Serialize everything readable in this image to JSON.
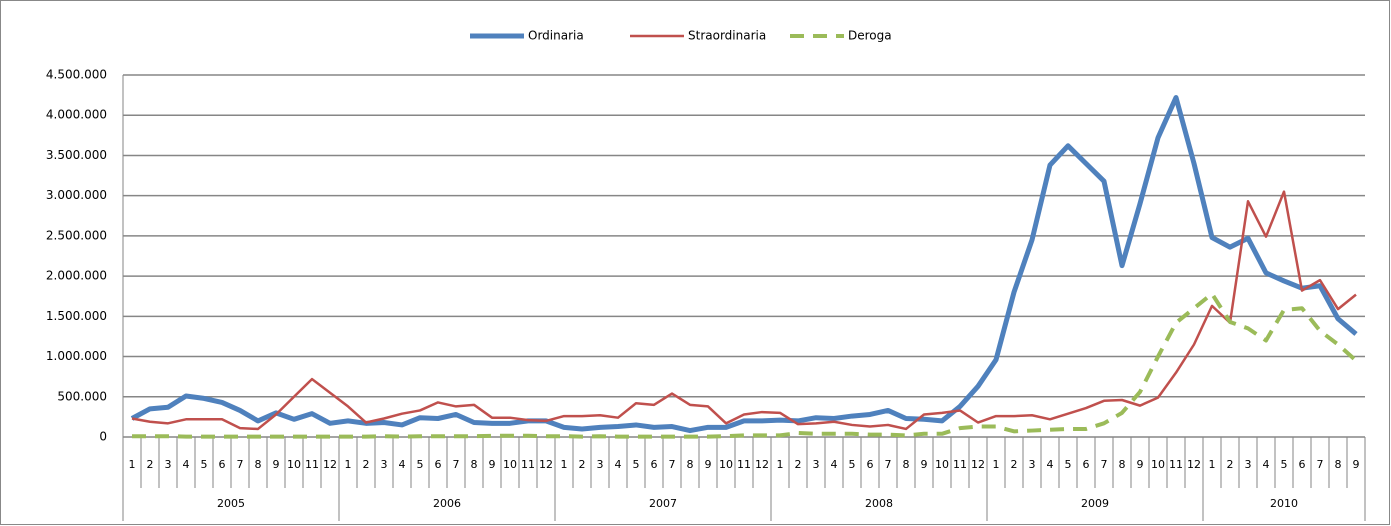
{
  "chart_data": {
    "type": "line",
    "categories": [
      "1",
      "2",
      "3",
      "4",
      "5",
      "6",
      "7",
      "8",
      "9",
      "10",
      "11",
      "12",
      "1",
      "2",
      "3",
      "4",
      "5",
      "6",
      "7",
      "8",
      "9",
      "10",
      "11",
      "12",
      "1",
      "2",
      "3",
      "4",
      "5",
      "6",
      "7",
      "8",
      "9",
      "10",
      "11",
      "12",
      "1",
      "2",
      "3",
      "4",
      "5",
      "6",
      "7",
      "8",
      "9",
      "10",
      "11",
      "12",
      "1",
      "2",
      "3",
      "4",
      "5",
      "6",
      "7",
      "8",
      "9",
      "10",
      "11",
      "12",
      "1",
      "2",
      "3",
      "4",
      "5",
      "6",
      "7",
      "8",
      "9"
    ],
    "category_groups": [
      "2005",
      "2006",
      "2007",
      "2008",
      "2009",
      "2010"
    ],
    "ylim": [
      0,
      4500000
    ],
    "yticks": [
      0,
      {
        "value": 500000,
        "label": "500.000"
      },
      {
        "value": 1000000,
        "label": "1.000.000"
      },
      {
        "value": 1500000,
        "label": "1.500.000"
      },
      {
        "value": 2000000,
        "label": "2.000.000"
      },
      {
        "value": 2500000,
        "label": "2.500.000"
      },
      {
        "value": 3000000,
        "label": "3.000.000"
      },
      {
        "value": 3500000,
        "label": "3.500.000"
      },
      {
        "value": 4000000,
        "label": "4.000.000"
      },
      {
        "value": 4500000,
        "label": "4.500.000"
      }
    ],
    "grid": true,
    "legend": "top",
    "series": [
      {
        "name": "Ordinaria",
        "color": "#4f81bd",
        "dash": false,
        "width": 5,
        "values": [
          230000,
          350000,
          370000,
          510000,
          480000,
          430000,
          330000,
          200000,
          300000,
          220000,
          290000,
          170000,
          200000,
          170000,
          180000,
          150000,
          240000,
          230000,
          280000,
          180000,
          170000,
          170000,
          200000,
          200000,
          120000,
          100000,
          120000,
          130000,
          150000,
          120000,
          130000,
          80000,
          120000,
          120000,
          200000,
          200000,
          210000,
          200000,
          240000,
          230000,
          260000,
          280000,
          330000,
          230000,
          220000,
          200000,
          380000,
          630000,
          960000,
          1800000,
          2450000,
          3380000,
          3620000,
          3400000,
          3180000,
          2130000,
          2900000,
          3720000,
          4220000,
          3400000,
          2480000,
          2360000,
          2470000,
          2040000,
          1940000,
          1850000,
          1880000,
          1470000,
          1280000
        ]
      },
      {
        "name": "Straordinaria",
        "color": "#c0504d",
        "dash": false,
        "width": 2.5,
        "values": [
          230000,
          190000,
          170000,
          220000,
          220000,
          220000,
          110000,
          100000,
          280000,
          500000,
          720000,
          550000,
          380000,
          180000,
          230000,
          290000,
          330000,
          430000,
          380000,
          400000,
          240000,
          240000,
          210000,
          200000,
          260000,
          260000,
          270000,
          240000,
          420000,
          400000,
          540000,
          400000,
          380000,
          170000,
          280000,
          310000,
          300000,
          160000,
          170000,
          190000,
          150000,
          130000,
          150000,
          100000,
          280000,
          300000,
          330000,
          180000,
          260000,
          260000,
          270000,
          220000,
          290000,
          360000,
          450000,
          460000,
          390000,
          490000,
          800000,
          1150000,
          1630000,
          1420000,
          2930000,
          2490000,
          3050000,
          1820000,
          1950000,
          1590000,
          1770000
        ]
      },
      {
        "name": "Deroga",
        "color": "#9bbb59",
        "dash": true,
        "width": 4,
        "values": [
          10000,
          10000,
          10000,
          5000,
          5000,
          5000,
          5000,
          5000,
          5000,
          5000,
          5000,
          5000,
          5000,
          5000,
          10000,
          5000,
          10000,
          10000,
          10000,
          10000,
          15000,
          15000,
          15000,
          10000,
          10000,
          5000,
          10000,
          5000,
          5000,
          5000,
          5000,
          5000,
          5000,
          10000,
          20000,
          20000,
          20000,
          50000,
          40000,
          40000,
          40000,
          30000,
          30000,
          20000,
          40000,
          40000,
          110000,
          130000,
          130000,
          70000,
          80000,
          90000,
          100000,
          100000,
          170000,
          300000,
          560000,
          1000000,
          1420000,
          1600000,
          1780000,
          1430000,
          1350000,
          1200000,
          1580000,
          1600000,
          1320000,
          1150000,
          950000
        ]
      }
    ]
  }
}
